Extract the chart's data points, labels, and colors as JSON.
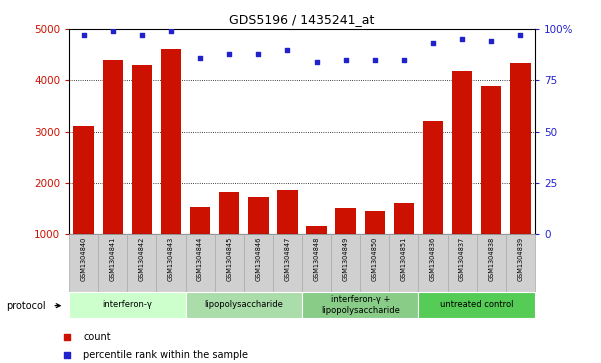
{
  "title": "GDS5196 / 1435241_at",
  "samples": [
    "GSM1304840",
    "GSM1304841",
    "GSM1304842",
    "GSM1304843",
    "GSM1304844",
    "GSM1304845",
    "GSM1304846",
    "GSM1304847",
    "GSM1304848",
    "GSM1304849",
    "GSM1304850",
    "GSM1304851",
    "GSM1304836",
    "GSM1304837",
    "GSM1304838",
    "GSM1304839"
  ],
  "counts": [
    3100,
    4400,
    4300,
    4620,
    1520,
    1830,
    1720,
    1870,
    1150,
    1500,
    1450,
    1600,
    3200,
    4180,
    3880,
    4330
  ],
  "percentiles": [
    97,
    99,
    97,
    99,
    86,
    88,
    88,
    90,
    84,
    85,
    85,
    85,
    93,
    95,
    94,
    97
  ],
  "ylim_left": [
    1000,
    5000
  ],
  "ylim_right": [
    0,
    100
  ],
  "yticks_left": [
    1000,
    2000,
    3000,
    4000,
    5000
  ],
  "yticks_right": [
    0,
    25,
    50,
    75,
    100
  ],
  "bar_color": "#cc1100",
  "dot_color": "#2222cc",
  "groups": [
    {
      "label": "interferon-γ",
      "start": 0,
      "end": 4,
      "color": "#ccffcc"
    },
    {
      "label": "lipopolysaccharide",
      "start": 4,
      "end": 8,
      "color": "#aaddaa"
    },
    {
      "label": "interferon-γ +\nlipopolysaccharide",
      "start": 8,
      "end": 12,
      "color": "#88cc88"
    },
    {
      "label": "untreated control",
      "start": 12,
      "end": 16,
      "color": "#55cc55"
    }
  ],
  "protocol_label": "protocol",
  "legend_count_label": "count",
  "legend_percentile_label": "percentile rank within the sample",
  "bar_color_hex": "#cc1100",
  "dot_color_hex": "#2222cc",
  "tick_color_left": "#cc1100",
  "tick_color_right": "#2222cc",
  "sample_box_color": "#d0d0d0",
  "sample_box_edge": "#aaaaaa"
}
